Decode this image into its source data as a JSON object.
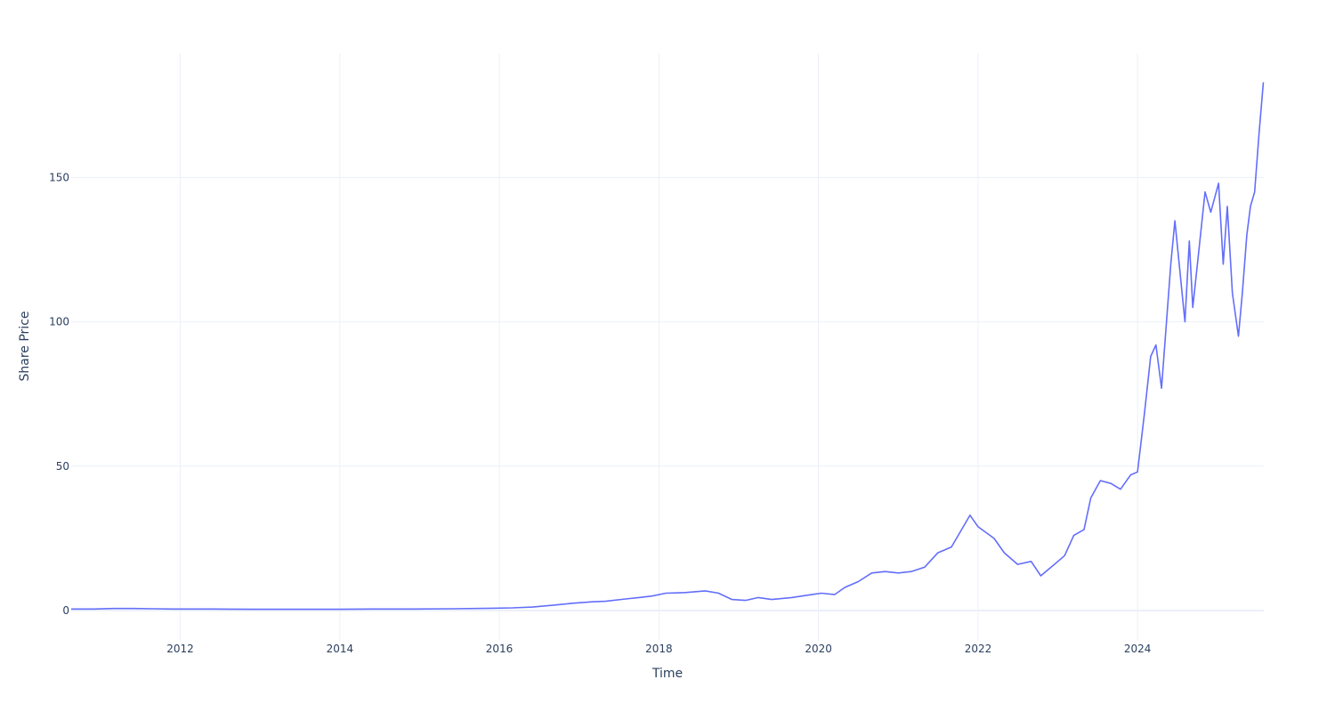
{
  "chart_data": {
    "type": "line",
    "xlabel": "Time",
    "ylabel": "Share Price",
    "x_range": [
      "2010-08-20",
      "2025-08-01"
    ],
    "ylim": [
      -10.5,
      193
    ],
    "x_ticks": [
      "2012",
      "2014",
      "2016",
      "2018",
      "2020",
      "2022",
      "2024"
    ],
    "y_ticks": [
      0,
      50,
      100,
      150
    ],
    "grid": true,
    "legend": "none",
    "line_color": "#636efa",
    "series": [
      {
        "x": [
          "2010-08-20",
          "2010-12-01",
          "2011-03-01",
          "2011-06-01",
          "2011-09-01",
          "2011-12-01",
          "2012-06-01",
          "2012-12-01",
          "2013-06-01",
          "2013-12-01",
          "2014-06-01",
          "2014-12-01",
          "2015-06-01",
          "2015-12-01",
          "2016-03-01",
          "2016-06-01",
          "2016-09-01",
          "2016-12-01",
          "2017-03-01",
          "2017-05-01",
          "2017-08-01",
          "2017-10-01",
          "2017-12-01",
          "2018-02-01",
          "2018-05-01",
          "2018-08-01",
          "2018-10-01",
          "2018-12-01",
          "2019-02-01",
          "2019-04-01",
          "2019-06-01",
          "2019-09-01",
          "2019-12-01",
          "2020-01-15",
          "2020-03-15",
          "2020-05-01",
          "2020-07-01",
          "2020-09-01",
          "2020-11-01",
          "2021-01-01",
          "2021-03-01",
          "2021-05-01",
          "2021-07-01",
          "2021-09-01",
          "2021-11-25",
          "2022-01-01",
          "2022-03-15",
          "2022-05-01",
          "2022-07-01",
          "2022-09-01",
          "2022-10-15",
          "2022-12-01",
          "2023-02-01",
          "2023-03-15",
          "2023-05-01",
          "2023-06-01",
          "2023-07-15",
          "2023-09-01",
          "2023-10-15",
          "2023-12-01",
          "2024-01-01",
          "2024-02-01",
          "2024-03-01",
          "2024-03-25",
          "2024-04-20",
          "2024-06-01",
          "2024-06-20",
          "2024-08-05",
          "2024-08-25",
          "2024-09-10",
          "2024-10-01",
          "2024-11-05",
          "2024-12-01",
          "2025-01-06",
          "2025-01-27",
          "2025-02-15",
          "2025-03-10",
          "2025-04-07",
          "2025-04-25",
          "2025-05-15",
          "2025-06-01",
          "2025-06-20",
          "2025-07-10",
          "2025-07-30"
        ],
        "y": [
          0.5,
          0.5,
          0.7,
          0.7,
          0.6,
          0.5,
          0.5,
          0.4,
          0.4,
          0.4,
          0.5,
          0.5,
          0.6,
          0.8,
          0.9,
          1.2,
          1.8,
          2.5,
          3.0,
          3.2,
          4.0,
          4.5,
          5.0,
          6.0,
          6.2,
          6.8,
          6.0,
          3.8,
          3.5,
          4.5,
          3.8,
          4.5,
          5.5,
          6.0,
          5.5,
          8.0,
          10.0,
          13.0,
          13.5,
          13.0,
          13.5,
          15.0,
          20.0,
          22.0,
          33.0,
          29.0,
          25.0,
          20.0,
          16.0,
          17.0,
          12.0,
          15.0,
          19.0,
          26.0,
          28.0,
          39.0,
          45.0,
          44.0,
          42.0,
          47.0,
          48.0,
          68.0,
          88.0,
          92.0,
          77.0,
          120.0,
          135.0,
          100.0,
          128.0,
          105.0,
          120.0,
          145.0,
          138.0,
          148.0,
          120.0,
          140.0,
          110.0,
          95.0,
          110.0,
          130.0,
          140.0,
          145.0,
          165.0,
          183.0
        ]
      }
    ]
  }
}
